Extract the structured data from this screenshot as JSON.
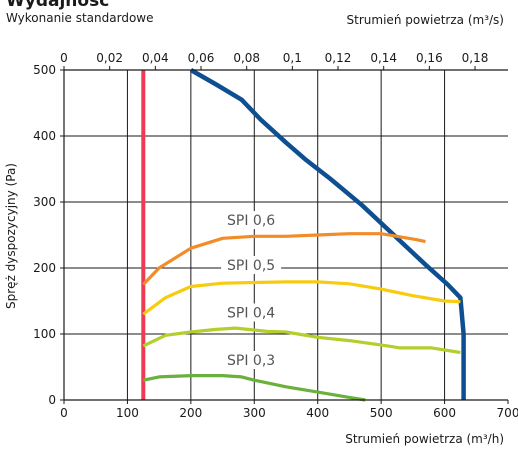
{
  "chart_data": {
    "type": "line",
    "title": "Wydajność",
    "subtitle": "Wykonanie standardowe",
    "xlabel": "Strumień powietrza (m³/h)",
    "x2label": "Strumień powietrza (m³/s)",
    "ylabel": "Spręż dyspozycyjny (Pa)",
    "xlim": [
      0,
      700
    ],
    "ylim": [
      0,
      500
    ],
    "x2lim": [
      0,
      0.19444
    ],
    "xticks": [
      "0",
      "100",
      "200",
      "300",
      "400",
      "500",
      "600",
      "700"
    ],
    "x2ticks": [
      "0",
      "0,02",
      "0,04",
      "0,06",
      "0,08",
      "0,1",
      "0,12",
      "0,14",
      "0,16",
      "0,18"
    ],
    "yticks": [
      "0",
      "100",
      "200",
      "300",
      "400",
      "500"
    ],
    "grid": true,
    "series": [
      {
        "name": "",
        "color": "#ef3b52",
        "x": [
          125,
          125
        ],
        "y": [
          0,
          500
        ]
      },
      {
        "name": "",
        "color": "#0e4f92",
        "x": [
          200,
          240,
          280,
          310,
          350,
          380,
          420,
          470,
          520,
          570,
          605,
          625,
          630,
          630,
          630
        ],
        "y": [
          500,
          478,
          455,
          425,
          390,
          365,
          335,
          295,
          250,
          205,
          175,
          155,
          100,
          50,
          0
        ]
      },
      {
        "name": "SPI 0,6",
        "color": "#f28c28",
        "x": [
          125,
          150,
          200,
          250,
          300,
          350,
          400,
          450,
          500,
          525,
          555,
          570
        ],
        "y": [
          175,
          200,
          230,
          245,
          248,
          248,
          250,
          252,
          252,
          248,
          243,
          240
        ]
      },
      {
        "name": "SPI 0,5",
        "color": "#f7cc10",
        "x": [
          125,
          160,
          200,
          250,
          300,
          350,
          400,
          450,
          500,
          550,
          600,
          625
        ],
        "y": [
          130,
          155,
          172,
          177,
          178,
          179,
          179,
          176,
          168,
          158,
          150,
          149
        ]
      },
      {
        "name": "SPI 0,4",
        "color": "#b2cf2c",
        "x": [
          125,
          160,
          200,
          240,
          270,
          290,
          320,
          350,
          400,
          450,
          510,
          530,
          580,
          625
        ],
        "y": [
          82,
          98,
          103,
          107,
          109,
          107,
          104,
          103,
          95,
          90,
          82,
          79,
          79,
          72
        ]
      },
      {
        "name": "SPI 0,3",
        "color": "#6ab13c",
        "x": [
          125,
          150,
          200,
          250,
          280,
          300,
          350,
          400,
          450,
          475
        ],
        "y": [
          30,
          35,
          37,
          37,
          35,
          30,
          20,
          12,
          4,
          0
        ]
      }
    ],
    "labels": [
      {
        "text": "SPI 0,6",
        "x": 295,
        "y": 265
      },
      {
        "text": "SPI 0,5",
        "x": 295,
        "y": 197
      },
      {
        "text": "SPI 0,4",
        "x": 295,
        "y": 125
      },
      {
        "text": "SPI 0,3",
        "x": 295,
        "y": 53
      }
    ]
  }
}
